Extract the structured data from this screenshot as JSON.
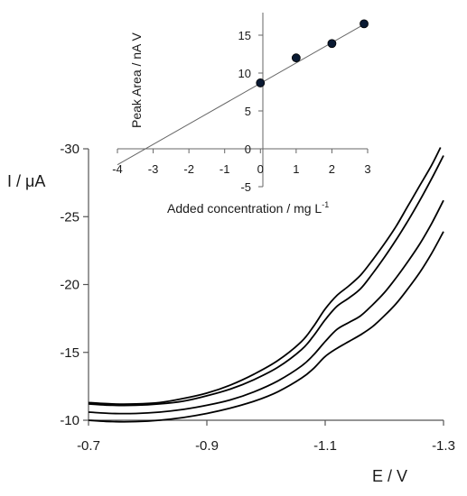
{
  "chart_data": [
    {
      "type": "line",
      "xlabel": "E / V",
      "ylabel": "I / μA",
      "xlim": [
        -0.7,
        -1.3
      ],
      "ylim": [
        -10,
        -30
      ],
      "x_ticks": [
        -0.7,
        -0.9,
        -1.1,
        -1.3
      ],
      "x_tick_labels": [
        "-0.7",
        "-0.9",
        "-1.1",
        "-1.3"
      ],
      "y_ticks": [
        -10,
        -15,
        -20,
        -25,
        -30
      ],
      "y_tick_labels": [
        "-10",
        "-15",
        "-20",
        "-25",
        "-30"
      ],
      "grid": false,
      "series": [
        {
          "x": [
            -0.7,
            -0.74,
            -0.78,
            -0.82,
            -0.86,
            -0.9,
            -0.94,
            -0.98,
            -1.02,
            -1.06,
            -1.08,
            -1.1,
            -1.12,
            -1.14,
            -1.16,
            -1.18,
            -1.2,
            -1.22,
            -1.24,
            -1.26,
            -1.28,
            -1.295
          ],
          "y": [
            -11.3,
            -11.2,
            -11.2,
            -11.3,
            -11.6,
            -12.0,
            -12.6,
            -13.4,
            -14.4,
            -15.8,
            -16.9,
            -18.2,
            -19.2,
            -19.9,
            -20.7,
            -21.8,
            -23.0,
            -24.3,
            -25.8,
            -27.3,
            -28.8,
            -30.1
          ]
        },
        {
          "x": [
            -0.7,
            -0.74,
            -0.78,
            -0.82,
            -0.86,
            -0.9,
            -0.94,
            -0.98,
            -1.02,
            -1.06,
            -1.08,
            -1.1,
            -1.12,
            -1.14,
            -1.16,
            -1.18,
            -1.2,
            -1.22,
            -1.24,
            -1.26,
            -1.28,
            -1.3
          ],
          "y": [
            -11.2,
            -11.1,
            -11.1,
            -11.2,
            -11.4,
            -11.8,
            -12.3,
            -13.0,
            -13.9,
            -15.2,
            -16.2,
            -17.4,
            -18.4,
            -19.0,
            -19.7,
            -20.8,
            -22.0,
            -23.3,
            -24.7,
            -26.2,
            -27.8,
            -29.5
          ]
        },
        {
          "x": [
            -0.7,
            -0.74,
            -0.78,
            -0.82,
            -0.86,
            -0.9,
            -0.94,
            -0.98,
            -1.02,
            -1.06,
            -1.08,
            -1.1,
            -1.12,
            -1.14,
            -1.16,
            -1.18,
            -1.2,
            -1.22,
            -1.24,
            -1.26,
            -1.28,
            -1.3
          ],
          "y": [
            -10.6,
            -10.5,
            -10.5,
            -10.6,
            -10.8,
            -11.1,
            -11.5,
            -12.1,
            -12.9,
            -14.0,
            -14.8,
            -15.8,
            -16.7,
            -17.2,
            -17.7,
            -18.5,
            -19.4,
            -20.5,
            -21.7,
            -23.0,
            -24.5,
            -26.2
          ]
        },
        {
          "x": [
            -0.7,
            -0.74,
            -0.78,
            -0.82,
            -0.86,
            -0.9,
            -0.94,
            -0.98,
            -1.02,
            -1.06,
            -1.08,
            -1.1,
            -1.12,
            -1.14,
            -1.16,
            -1.18,
            -1.2,
            -1.22,
            -1.24,
            -1.26,
            -1.28,
            -1.3
          ],
          "y": [
            -10.0,
            -9.9,
            -9.9,
            -10.0,
            -10.2,
            -10.5,
            -10.9,
            -11.4,
            -12.1,
            -13.1,
            -13.8,
            -14.7,
            -15.3,
            -15.8,
            -16.3,
            -16.9,
            -17.7,
            -18.6,
            -19.7,
            -20.9,
            -22.3,
            -23.9
          ]
        }
      ]
    },
    {
      "type": "scatter",
      "xlabel": "Added concentration / mg L",
      "xlabel_superscript": "-1",
      "ylabel": "Peak Area / nA V",
      "xlim": [
        -4,
        3
      ],
      "ylim": [
        -5,
        18
      ],
      "x_ticks": [
        -4,
        -3,
        -2,
        -1,
        0,
        1,
        2,
        3
      ],
      "x_tick_labels": [
        "-4",
        "-3",
        "-2",
        "-1",
        "0",
        "1",
        "2",
        "3"
      ],
      "y_ticks": [
        -5,
        0,
        5,
        10,
        15
      ],
      "y_tick_labels": [
        "-5",
        "0",
        "5",
        "10",
        "15"
      ],
      "grid": false,
      "series": [
        {
          "x": [
            0,
            1,
            2,
            2.9
          ],
          "y": [
            8.7,
            12.0,
            13.9,
            16.5
          ]
        }
      ],
      "fit_line": {
        "x": [
          -4,
          3
        ],
        "y": [
          -2.1,
          16.7
        ]
      },
      "marker_color": "#0a1a33"
    }
  ]
}
